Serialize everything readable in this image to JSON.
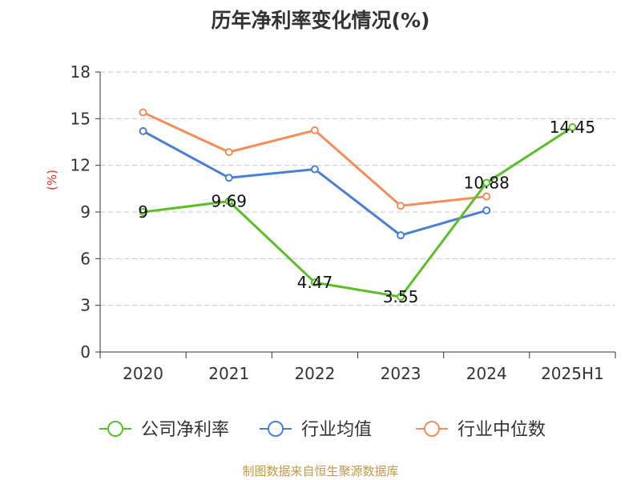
{
  "chart_data": {
    "type": "line",
    "title": "历年净利率变化情况(%)",
    "ylabel": "(%)",
    "xlabel": "",
    "categories": [
      "2020",
      "2021",
      "2022",
      "2023",
      "2024",
      "2025H1"
    ],
    "ylim": [
      0,
      18
    ],
    "yticks": [
      0,
      3,
      6,
      9,
      12,
      15,
      18
    ],
    "grid": true,
    "legend_position": "bottom",
    "series": [
      {
        "name": "公司净利率",
        "color": "#5cbf2a",
        "values": [
          9,
          9.69,
          4.47,
          3.55,
          10.88,
          14.45
        ],
        "labels": [
          "9",
          "9.69",
          "4.47",
          "3.55",
          "10.88",
          "14.45"
        ]
      },
      {
        "name": "行业均值",
        "color": "#4b7fd6",
        "values": [
          14.2,
          11.2,
          11.75,
          7.5,
          9.1,
          null
        ]
      },
      {
        "name": "行业中位数",
        "color": "#f48d5a",
        "values": [
          15.4,
          12.85,
          14.25,
          9.4,
          10.0,
          null
        ]
      }
    ]
  },
  "footer": "制图数据来自恒生聚源数据库"
}
